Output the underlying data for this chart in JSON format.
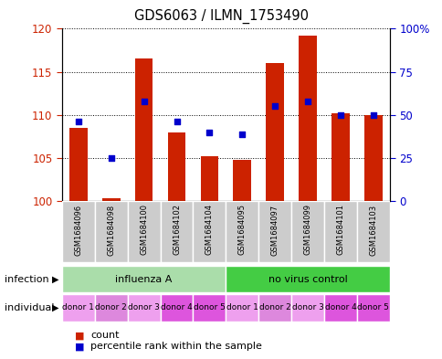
{
  "title": "GDS6063 / ILMN_1753490",
  "samples": [
    "GSM1684096",
    "GSM1684098",
    "GSM1684100",
    "GSM1684102",
    "GSM1684104",
    "GSM1684095",
    "GSM1684097",
    "GSM1684099",
    "GSM1684101",
    "GSM1684103"
  ],
  "counts": [
    108.5,
    100.3,
    116.5,
    108.0,
    105.2,
    104.8,
    116.0,
    119.2,
    110.2,
    110.0
  ],
  "percentiles_pct": [
    46,
    25,
    58,
    46,
    40,
    39,
    55,
    58,
    50,
    50
  ],
  "ylim_left": [
    100,
    120
  ],
  "ylim_right": [
    0,
    100
  ],
  "yticks_left": [
    100,
    105,
    110,
    115,
    120
  ],
  "yticks_right": [
    0,
    25,
    50,
    75,
    100
  ],
  "ytick_labels_left": [
    "100",
    "105",
    "110",
    "115",
    "120"
  ],
  "ytick_labels_right": [
    "0",
    "25",
    "50",
    "75",
    "100%"
  ],
  "bar_color": "#cc2200",
  "dot_color": "#0000cc",
  "bar_bottom": 100,
  "infection_groups": [
    {
      "label": "influenza A",
      "start": 0,
      "end": 5,
      "color": "#aaddaa"
    },
    {
      "label": "no virus control",
      "start": 5,
      "end": 10,
      "color": "#44cc44"
    }
  ],
  "individuals": [
    "donor 1",
    "donor 2",
    "donor 3",
    "donor 4",
    "donor 5",
    "donor 1",
    "donor 2",
    "donor 3",
    "donor 4",
    "donor 5"
  ],
  "individual_colors": [
    "#eea0ee",
    "#dd88dd",
    "#eea0ee",
    "#dd55dd",
    "#dd55dd",
    "#eea0ee",
    "#dd88dd",
    "#eea0ee",
    "#dd55dd",
    "#dd55dd"
  ],
  "infection_label": "infection",
  "individual_label": "individual",
  "legend_count_label": "count",
  "legend_percentile_label": "percentile rank within the sample",
  "tick_label_color_left": "#cc2200",
  "tick_label_color_right": "#0000cc",
  "sample_box_color": "#cccccc",
  "sample_sep_color": "#ffffff"
}
